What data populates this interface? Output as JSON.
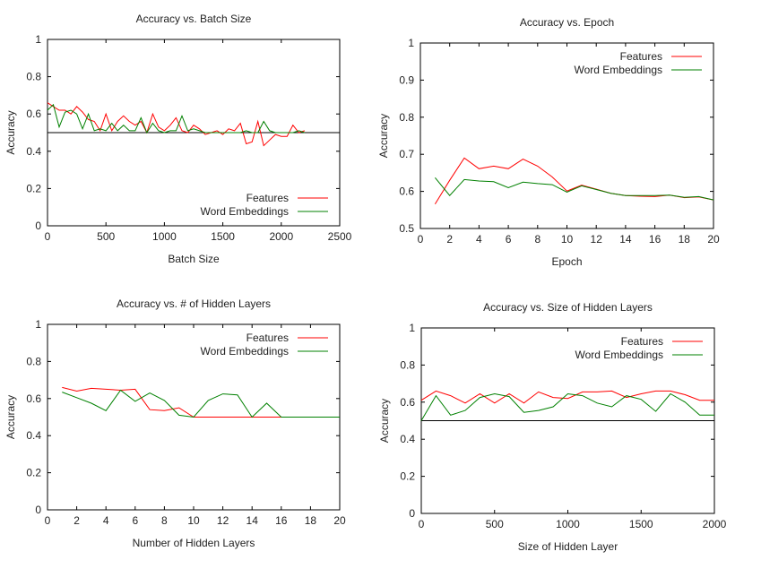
{
  "chart_data": [
    {
      "type": "line",
      "title": "Accuracy vs. Batch Size",
      "xlabel": "Batch Size",
      "ylabel": "Accuracy",
      "xlim": [
        0,
        2500
      ],
      "ylim": [
        0,
        1
      ],
      "xticks": [
        "0",
        "500",
        "1000",
        "1500",
        "2000",
        "2500"
      ],
      "yticks": [
        "0",
        "0.2",
        "0.4",
        "0.6",
        "0.8",
        "1"
      ],
      "xtick_values": [
        0,
        500,
        1000,
        1500,
        2000,
        2500
      ],
      "ytick_values": [
        0,
        0.2,
        0.4,
        0.6,
        0.8,
        1
      ],
      "grid": false,
      "legend": "bottom-right",
      "baseline": 0.5,
      "series": [
        {
          "name": "Features",
          "color": "#ff0000",
          "x": [
            0,
            50,
            100,
            150,
            200,
            250,
            300,
            350,
            400,
            450,
            500,
            550,
            600,
            650,
            700,
            750,
            800,
            850,
            900,
            950,
            1000,
            1050,
            1100,
            1150,
            1200,
            1250,
            1300,
            1350,
            1400,
            1450,
            1500,
            1550,
            1600,
            1650,
            1700,
            1750,
            1800,
            1850,
            1900,
            1950,
            2000,
            2050,
            2100,
            2150,
            2200
          ],
          "y": [
            0.66,
            0.64,
            0.62,
            0.62,
            0.6,
            0.64,
            0.61,
            0.57,
            0.56,
            0.51,
            0.6,
            0.51,
            0.56,
            0.59,
            0.56,
            0.54,
            0.56,
            0.5,
            0.6,
            0.53,
            0.51,
            0.54,
            0.58,
            0.51,
            0.5,
            0.54,
            0.52,
            0.49,
            0.5,
            0.51,
            0.49,
            0.52,
            0.51,
            0.55,
            0.44,
            0.45,
            0.56,
            0.43,
            0.46,
            0.49,
            0.48,
            0.48,
            0.54,
            0.5,
            0.51
          ]
        },
        {
          "name": "Word Embeddings",
          "color": "#008000",
          "x": [
            0,
            50,
            100,
            150,
            200,
            250,
            300,
            350,
            400,
            450,
            500,
            550,
            600,
            650,
            700,
            750,
            800,
            850,
            900,
            950,
            1000,
            1050,
            1100,
            1150,
            1200,
            1250,
            1300,
            1350,
            1400,
            1450,
            1500,
            1550,
            1600,
            1650,
            1700,
            1750,
            1800,
            1850,
            1900,
            1950,
            2000,
            2050,
            2100,
            2150,
            2200
          ],
          "y": [
            0.62,
            0.65,
            0.53,
            0.61,
            0.62,
            0.6,
            0.52,
            0.6,
            0.51,
            0.52,
            0.51,
            0.55,
            0.51,
            0.54,
            0.51,
            0.51,
            0.58,
            0.5,
            0.55,
            0.51,
            0.5,
            0.51,
            0.51,
            0.59,
            0.51,
            0.52,
            0.51,
            0.5,
            0.5,
            0.5,
            0.5,
            0.5,
            0.5,
            0.5,
            0.51,
            0.5,
            0.5,
            0.56,
            0.51,
            0.5,
            0.5,
            0.5,
            0.5,
            0.51,
            0.5
          ]
        }
      ]
    },
    {
      "type": "line",
      "title": "Accuracy vs. Epoch",
      "xlabel": "Epoch",
      "ylabel": "Accuracy",
      "xlim": [
        0,
        20
      ],
      "ylim": [
        0.5,
        1
      ],
      "xticks": [
        "0",
        "2",
        "4",
        "6",
        "8",
        "10",
        "12",
        "14",
        "16",
        "18",
        "20"
      ],
      "yticks": [
        "0.5",
        "0.6",
        "0.7",
        "0.8",
        "0.9",
        "1"
      ],
      "xtick_values": [
        0,
        2,
        4,
        6,
        8,
        10,
        12,
        14,
        16,
        18,
        20
      ],
      "ytick_values": [
        0.5,
        0.6,
        0.7,
        0.8,
        0.9,
        1
      ],
      "grid": false,
      "legend": "top-right",
      "series": [
        {
          "name": "Features",
          "color": "#ff0000",
          "x": [
            1,
            2,
            3,
            4,
            5,
            6,
            7,
            8,
            9,
            10,
            11,
            12,
            13,
            14,
            15,
            16,
            17,
            18,
            19,
            20
          ],
          "y": [
            0.566,
            0.63,
            0.69,
            0.661,
            0.668,
            0.661,
            0.687,
            0.668,
            0.639,
            0.601,
            0.617,
            0.606,
            0.595,
            0.589,
            0.587,
            0.586,
            0.59,
            0.583,
            0.585,
            0.577
          ]
        },
        {
          "name": "Word Embeddings",
          "color": "#008000",
          "x": [
            1,
            2,
            3,
            4,
            5,
            6,
            7,
            8,
            9,
            10,
            11,
            12,
            13,
            14,
            15,
            16,
            17,
            18,
            19,
            20
          ],
          "y": [
            0.637,
            0.589,
            0.632,
            0.628,
            0.626,
            0.61,
            0.625,
            0.621,
            0.618,
            0.598,
            0.615,
            0.605,
            0.595,
            0.589,
            0.589,
            0.589,
            0.59,
            0.584,
            0.586,
            0.577
          ]
        }
      ]
    },
    {
      "type": "line",
      "title": "Accuracy vs. # of Hidden Layers",
      "xlabel": "Number of Hidden Layers",
      "ylabel": "Accuracy",
      "xlim": [
        0,
        20
      ],
      "ylim": [
        0,
        1
      ],
      "xticks": [
        "0",
        "2",
        "4",
        "6",
        "8",
        "10",
        "12",
        "14",
        "16",
        "18",
        "20"
      ],
      "yticks": [
        "0",
        "0.2",
        "0.4",
        "0.6",
        "0.8",
        "1"
      ],
      "xtick_values": [
        0,
        2,
        4,
        6,
        8,
        10,
        12,
        14,
        16,
        18,
        20
      ],
      "ytick_values": [
        0,
        0.2,
        0.4,
        0.6,
        0.8,
        1
      ],
      "grid": false,
      "legend": "top-right",
      "series": [
        {
          "name": "Features",
          "color": "#ff0000",
          "x": [
            1,
            2,
            3,
            4,
            5,
            6,
            7,
            8,
            9,
            10,
            11,
            12,
            13,
            14,
            15,
            16
          ],
          "y": [
            0.66,
            0.64,
            0.655,
            0.65,
            0.645,
            0.65,
            0.54,
            0.535,
            0.55,
            0.5,
            0.5,
            0.5,
            0.5,
            0.5,
            0.5,
            0.5
          ]
        },
        {
          "name": "Word Embeddings",
          "color": "#008000",
          "x": [
            1,
            2,
            3,
            4,
            5,
            6,
            7,
            8,
            9,
            10,
            11,
            12,
            13,
            14,
            15,
            16,
            17,
            18,
            19,
            20
          ],
          "y": [
            0.635,
            0.605,
            0.575,
            0.535,
            0.645,
            0.585,
            0.63,
            0.59,
            0.51,
            0.5,
            0.59,
            0.625,
            0.62,
            0.5,
            0.575,
            0.5,
            0.5,
            0.5,
            0.5,
            0.5
          ]
        }
      ]
    },
    {
      "type": "line",
      "title": "Accuracy vs. Size of Hidden Layers",
      "xlabel": "Size of Hidden Layer",
      "ylabel": "Accuracy",
      "xlim": [
        0,
        2000
      ],
      "ylim": [
        0,
        1
      ],
      "xticks": [
        "0",
        "500",
        "1000",
        "1500",
        "2000"
      ],
      "yticks": [
        "0",
        "0.2",
        "0.4",
        "0.6",
        "0.8",
        "1"
      ],
      "xtick_values": [
        0,
        500,
        1000,
        1500,
        2000
      ],
      "ytick_values": [
        0,
        0.2,
        0.4,
        0.6,
        0.8,
        1
      ],
      "grid": false,
      "legend": "top-right",
      "baseline": 0.5,
      "series": [
        {
          "name": "Features",
          "color": "#ff0000",
          "x": [
            0,
            100,
            200,
            300,
            400,
            500,
            600,
            700,
            800,
            900,
            1000,
            1100,
            1200,
            1300,
            1400,
            1500,
            1600,
            1700,
            1800,
            1900,
            2000
          ],
          "y": [
            0.61,
            0.66,
            0.635,
            0.595,
            0.645,
            0.595,
            0.645,
            0.595,
            0.655,
            0.625,
            0.62,
            0.655,
            0.655,
            0.66,
            0.625,
            0.645,
            0.66,
            0.66,
            0.64,
            0.61,
            0.61
          ]
        },
        {
          "name": "Word Embeddings",
          "color": "#008000",
          "x": [
            0,
            100,
            200,
            300,
            400,
            500,
            600,
            700,
            800,
            900,
            1000,
            1100,
            1200,
            1300,
            1400,
            1500,
            1600,
            1700,
            1800,
            1900,
            2000
          ],
          "y": [
            0.5,
            0.635,
            0.53,
            0.555,
            0.625,
            0.645,
            0.63,
            0.545,
            0.555,
            0.575,
            0.645,
            0.635,
            0.595,
            0.575,
            0.635,
            0.615,
            0.55,
            0.645,
            0.6,
            0.53,
            0.53
          ]
        }
      ]
    }
  ]
}
